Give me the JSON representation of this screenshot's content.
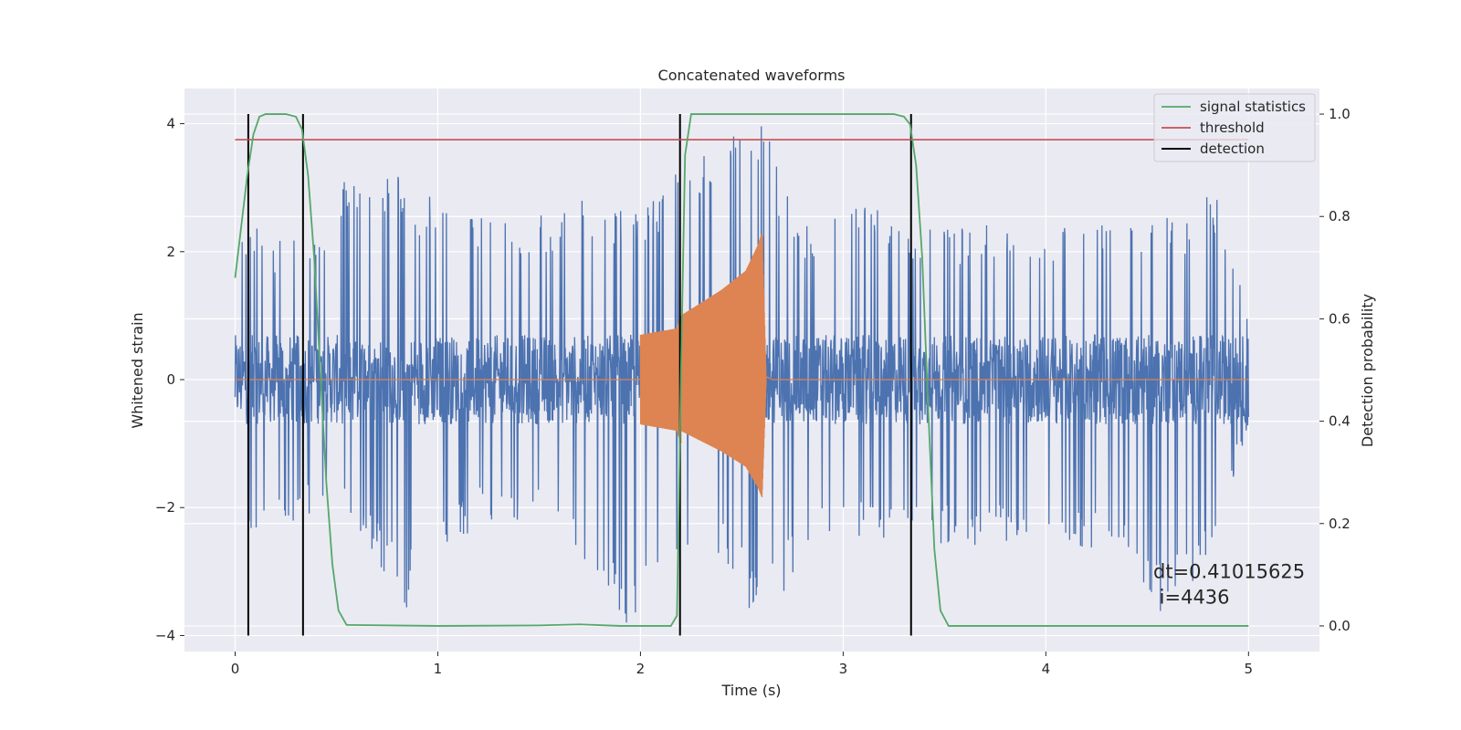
{
  "chart_data": {
    "type": "line",
    "title": "Concatenated waveforms",
    "xlabel": "Time (s)",
    "ylabel": "Whitened strain",
    "y2label": "Detection probability",
    "xlim": [
      -0.25,
      5.35
    ],
    "ylim": [
      -4.25,
      4.55
    ],
    "y2lim": [
      -0.05,
      1.05
    ],
    "xticks": [
      0,
      1,
      2,
      3,
      4,
      5
    ],
    "yticks": [
      -4,
      -2,
      0,
      2,
      4
    ],
    "y2ticks": [
      0.0,
      0.2,
      0.4,
      0.6,
      0.8,
      1.0
    ],
    "ytick_labels": [
      "−4",
      "−2",
      "0",
      "2",
      "4"
    ],
    "y2tick_labels": [
      "0.0",
      "0.2",
      "0.4",
      "0.6",
      "0.8",
      "1.0"
    ],
    "grid": true,
    "legend": {
      "position": "top-right",
      "entries": [
        {
          "label": "signal statistics",
          "color": "#55a868"
        },
        {
          "label": "threshold",
          "color": "#c44e52"
        },
        {
          "label": "detection",
          "color": "#000000"
        }
      ]
    },
    "series": [
      {
        "kind": "noise",
        "color": "#4c72b0",
        "x_range": [
          0,
          5
        ],
        "envelope": [
          [
            0.0,
            1.6
          ],
          [
            0.05,
            2.6
          ],
          [
            0.2,
            2.2
          ],
          [
            0.4,
            2.5
          ],
          [
            0.55,
            3.2
          ],
          [
            0.8,
            3.2
          ],
          [
            1.0,
            2.8
          ],
          [
            1.3,
            2.6
          ],
          [
            1.5,
            2.6
          ],
          [
            1.8,
            2.9
          ],
          [
            2.0,
            2.7
          ],
          [
            2.3,
            3.6
          ],
          [
            2.5,
            3.9
          ],
          [
            2.6,
            4.1
          ],
          [
            2.8,
            2.4
          ],
          [
            3.0,
            3.0
          ],
          [
            3.3,
            2.5
          ],
          [
            3.6,
            2.4
          ],
          [
            3.9,
            2.5
          ],
          [
            4.1,
            2.4
          ],
          [
            4.3,
            2.5
          ],
          [
            4.5,
            2.5
          ],
          [
            4.7,
            2.6
          ],
          [
            4.85,
            3.0
          ],
          [
            5.0,
            0.9
          ]
        ],
        "lower_envelope": [
          [
            0.0,
            -1.5
          ],
          [
            0.05,
            -2.6
          ],
          [
            0.2,
            -2.3
          ],
          [
            0.5,
            -2.0
          ],
          [
            0.85,
            -3.6
          ],
          [
            1.2,
            -2.2
          ],
          [
            1.6,
            -2.3
          ],
          [
            1.95,
            -3.9
          ],
          [
            2.2,
            -3.2
          ],
          [
            2.4,
            -2.7
          ],
          [
            2.6,
            -4.0
          ],
          [
            2.9,
            -2.4
          ],
          [
            3.3,
            -2.5
          ],
          [
            3.6,
            -2.6
          ],
          [
            4.0,
            -2.5
          ],
          [
            4.4,
            -2.8
          ],
          [
            4.6,
            -3.8
          ],
          [
            4.8,
            -2.9
          ],
          [
            5.0,
            -0.7
          ]
        ]
      },
      {
        "kind": "chirp",
        "color": "#dd8452",
        "x_range": [
          0,
          5
        ],
        "onset": 2.0,
        "merger": 2.6,
        "amplitude_points": [
          [
            2.0,
            0.7
          ],
          [
            2.18,
            0.8
          ],
          [
            2.2,
            1.0
          ],
          [
            2.4,
            1.4
          ],
          [
            2.52,
            1.7
          ],
          [
            2.58,
            2.1
          ],
          [
            2.6,
            2.3
          ],
          [
            2.62,
            0.05
          ]
        ]
      },
      {
        "name": "signal statistics",
        "color": "#55a868",
        "axis": "right",
        "points": [
          [
            0.0,
            0.68
          ],
          [
            0.03,
            0.78
          ],
          [
            0.06,
            0.88
          ],
          [
            0.09,
            0.96
          ],
          [
            0.12,
            0.995
          ],
          [
            0.15,
            1.0
          ],
          [
            0.25,
            1.0
          ],
          [
            0.3,
            0.995
          ],
          [
            0.33,
            0.97
          ],
          [
            0.36,
            0.88
          ],
          [
            0.39,
            0.72
          ],
          [
            0.42,
            0.5
          ],
          [
            0.45,
            0.28
          ],
          [
            0.48,
            0.12
          ],
          [
            0.51,
            0.03
          ],
          [
            0.55,
            0.002
          ],
          [
            1.0,
            0.0
          ],
          [
            1.5,
            0.001
          ],
          [
            1.7,
            0.003
          ],
          [
            1.9,
            0.0
          ],
          [
            2.15,
            0.0
          ],
          [
            2.18,
            0.02
          ],
          [
            2.2,
            0.5
          ],
          [
            2.22,
            0.92
          ],
          [
            2.25,
            1.0
          ],
          [
            3.25,
            1.0
          ],
          [
            3.3,
            0.995
          ],
          [
            3.33,
            0.98
          ],
          [
            3.36,
            0.9
          ],
          [
            3.39,
            0.72
          ],
          [
            3.42,
            0.42
          ],
          [
            3.45,
            0.15
          ],
          [
            3.48,
            0.03
          ],
          [
            3.52,
            0.0
          ],
          [
            5.0,
            0.0
          ]
        ]
      },
      {
        "name": "threshold",
        "color": "#c44e52",
        "axis": "right",
        "x": [
          0,
          5
        ],
        "values": [
          0.95,
          0.95
        ]
      }
    ],
    "detections": {
      "color": "#000000",
      "x": [
        0.065,
        0.335,
        2.195,
        3.335
      ],
      "ymin": -4.0,
      "ymax": 4.15
    },
    "annotation": {
      "line1": "dt=0.41015625",
      "line2": " i=4436",
      "x": 4.53,
      "y": -3.1
    }
  }
}
